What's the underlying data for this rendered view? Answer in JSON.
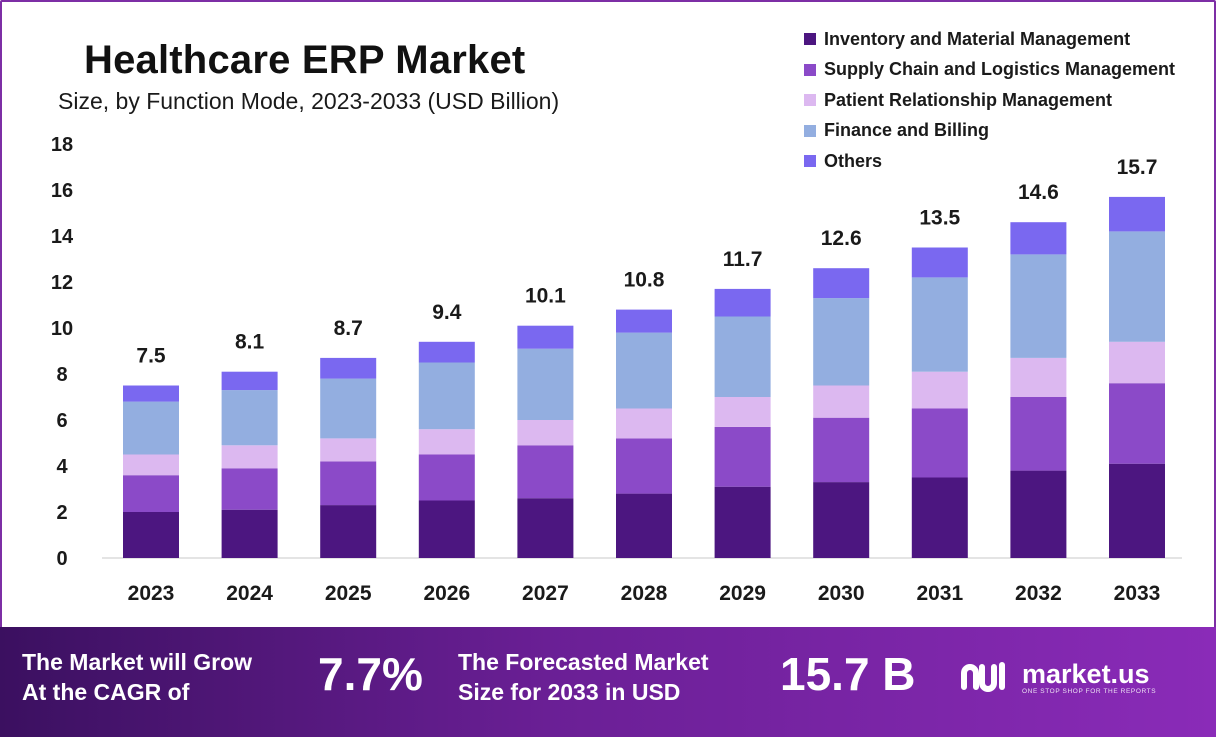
{
  "header": {
    "title": "Healthcare ERP Market",
    "subtitle": "Size, by Function Mode, 2023-2033 (USD Billion)"
  },
  "chart_data": {
    "type": "bar",
    "stacked": true,
    "title": "Healthcare ERP Market",
    "subtitle": "Size, by Function Mode, 2023-2033 (USD Billion)",
    "categories": [
      "2023",
      "2024",
      "2025",
      "2026",
      "2027",
      "2028",
      "2029",
      "2030",
      "2031",
      "2032",
      "2033"
    ],
    "series": [
      {
        "name": "Inventory and Material Management",
        "color": "#4c1680",
        "values": [
          2.0,
          2.1,
          2.3,
          2.5,
          2.6,
          2.8,
          3.1,
          3.3,
          3.5,
          3.8,
          4.1
        ]
      },
      {
        "name": "Supply Chain and Logistics Management",
        "color": "#8b4ac8",
        "values": [
          1.6,
          1.8,
          1.9,
          2.0,
          2.3,
          2.4,
          2.6,
          2.8,
          3.0,
          3.2,
          3.5
        ]
      },
      {
        "name": "Patient Relationship Management",
        "color": "#dcb8f0",
        "values": [
          0.9,
          1.0,
          1.0,
          1.1,
          1.1,
          1.3,
          1.3,
          1.4,
          1.6,
          1.7,
          1.8
        ]
      },
      {
        "name": "Finance and Billing",
        "color": "#93aee0",
        "values": [
          2.3,
          2.4,
          2.6,
          2.9,
          3.1,
          3.3,
          3.5,
          3.8,
          4.1,
          4.5,
          4.8
        ]
      },
      {
        "name": "Others",
        "color": "#7a68f0",
        "values": [
          0.7,
          0.8,
          0.9,
          0.9,
          1.0,
          1.0,
          1.2,
          1.3,
          1.3,
          1.4,
          1.5
        ]
      }
    ],
    "totals": [
      "7.5",
      "8.1",
      "8.7",
      "9.4",
      "10.1",
      "10.8",
      "11.7",
      "12.6",
      "13.5",
      "14.6",
      "15.7"
    ],
    "ylim": [
      0,
      18
    ],
    "yticks": [
      "0",
      "2",
      "4",
      "6",
      "8",
      "10",
      "12",
      "14",
      "16",
      "18"
    ],
    "grid": false,
    "legend_position": "top-right"
  },
  "footer": {
    "cagr_line1": "The Market will Grow",
    "cagr_line2": "At the CAGR of",
    "cagr_value": "7.7%",
    "forecast_line1": "The Forecasted Market",
    "forecast_line2": "Size for 2033 in USD",
    "forecast_value": "15.7 B",
    "logo_name": "market.us",
    "logo_tagline": "ONE STOP SHOP FOR THE REPORTS"
  }
}
